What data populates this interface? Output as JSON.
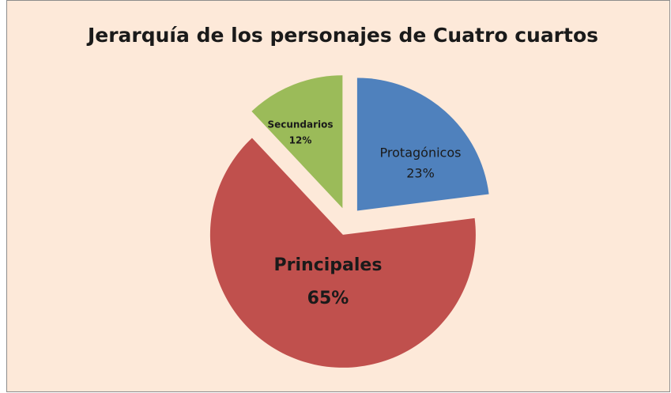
{
  "chart_data": {
    "type": "pie",
    "title": "Jerarquía de los personajes de Cuatro cuartos",
    "categories": [
      "Protagónicos",
      "Principales",
      "Secundarios"
    ],
    "values": [
      23,
      65,
      12
    ],
    "value_labels": [
      "23%",
      "65%",
      "12%"
    ],
    "colors": [
      "#4f81bd",
      "#c0504d",
      "#9bbb59"
    ]
  }
}
